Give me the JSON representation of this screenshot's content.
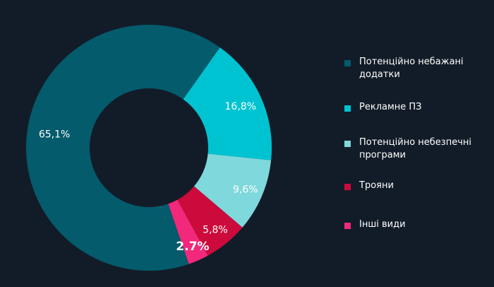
{
  "chart_data": {
    "type": "pie",
    "donut": true,
    "categories": [
      "Потенційно небажані додатки",
      "Рекламне ПЗ",
      "Потенційно небезпечні програми",
      "Трояни",
      "Інші види"
    ],
    "values": [
      65.1,
      16.8,
      9.6,
      5.8,
      2.7
    ],
    "value_labels": [
      "65,1%",
      "16,8%",
      "9,6%",
      "5,8%",
      "2.7%"
    ],
    "colors": [
      "#035b6c",
      "#00c3d1",
      "#7fd8db",
      "#cc0a3c",
      "#f2287a"
    ],
    "legend_position": "right",
    "title": ""
  }
}
